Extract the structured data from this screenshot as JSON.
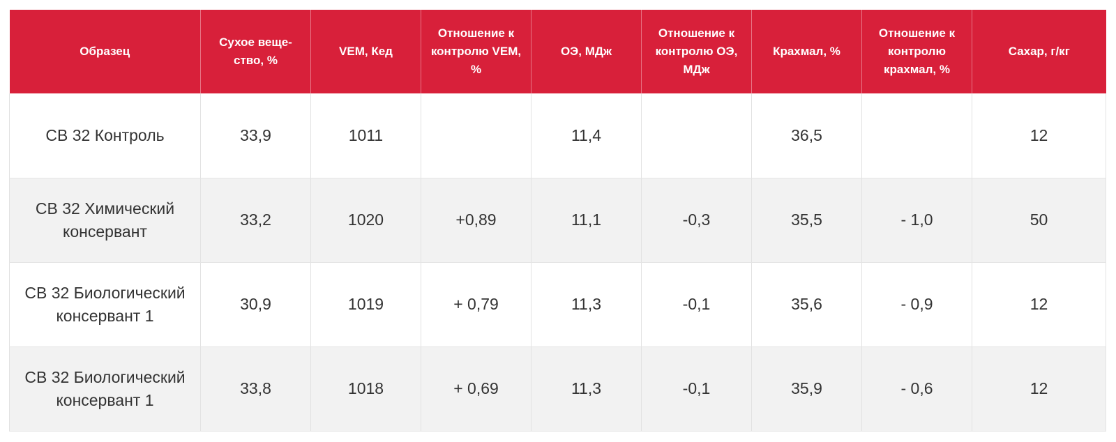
{
  "headers": [
    "Образец",
    "Сухое веще-ство, %",
    "VEM, Кед",
    "Отношение к контролю VEM, %",
    "ОЭ, МДж",
    "Отношение к контролю ОЭ, МДж",
    "Крахмал, %",
    "Отношение к контролю крахмал, %",
    "Сахар, г/кг"
  ],
  "rows": [
    [
      "СВ 32 Контроль",
      "33,9",
      "1011",
      "",
      "11,4",
      "",
      "36,5",
      "",
      "12"
    ],
    [
      "СВ 32 Химический консервант",
      "33,2",
      "1020",
      "+0,89",
      "11,1",
      "-0,3",
      "35,5",
      "- 1,0",
      "50"
    ],
    [
      "СВ 32 Биологический консервант 1",
      "30,9",
      "1019",
      "+ 0,79",
      "11,3",
      "-0,1",
      "35,6",
      "- 0,9",
      "12"
    ],
    [
      "СВ 32 Биологический консервант 1",
      "33,8",
      "1018",
      "+ 0,69",
      "11,3",
      "-0,1",
      "35,9",
      "- 0,6",
      "12"
    ]
  ],
  "colors": {
    "header_bg": "#d8203a",
    "header_text": "#ffffff",
    "row_alt_bg": "#f2f2f2",
    "cell_text": "#333333"
  }
}
